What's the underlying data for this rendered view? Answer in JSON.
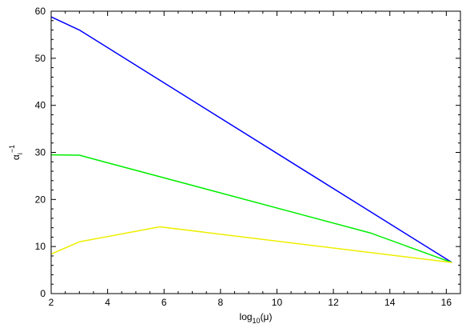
{
  "chart_data": {
    "type": "line",
    "title": "",
    "xlabel": {
      "base": "log",
      "subscript": "10",
      "argument": "(μ)"
    },
    "ylabel": {
      "base": "α",
      "subscript": "i",
      "superscript": "−1"
    },
    "xlim": [
      2,
      16.5
    ],
    "ylim": [
      0,
      60
    ],
    "xticks": [
      2,
      4,
      6,
      8,
      10,
      12,
      14,
      16
    ],
    "yticks": [
      0,
      10,
      20,
      30,
      40,
      50,
      60
    ],
    "grid": false,
    "series": [
      {
        "color": "#0000ff",
        "x": [
          2,
          3,
          16.2
        ],
        "y": [
          58.8,
          56.0,
          6.6
        ]
      },
      {
        "color": "#00ee00",
        "x": [
          2,
          3,
          13.3,
          16.2
        ],
        "y": [
          29.5,
          29.4,
          12.9,
          6.6
        ]
      },
      {
        "color": "#eeee00",
        "x": [
          2,
          3,
          5.85,
          16.2
        ],
        "y": [
          8.4,
          11.0,
          14.2,
          6.6
        ]
      }
    ]
  }
}
